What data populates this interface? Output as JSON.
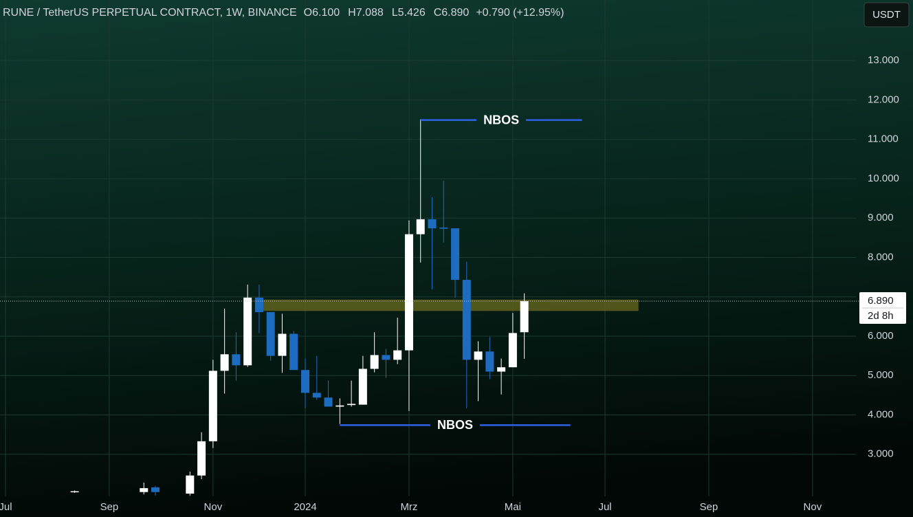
{
  "chart_data": {
    "type": "candlestick",
    "header": {
      "symbol": "RUNE / TetherUS PERPETUAL CONTRACT, 1W, BINANCE",
      "fields": [
        {
          "key": "O",
          "value": "6.100"
        },
        {
          "key": "H",
          "value": "7.088"
        },
        {
          "key": "L",
          "value": "5.426"
        },
        {
          "key": "C",
          "value": "6.890"
        }
      ],
      "change": "+0.790 (+12.95%)"
    },
    "currency_button": "USDT",
    "categories": [
      "Jul",
      null,
      null,
      null,
      null,
      null,
      null,
      null,
      null,
      "Sep",
      null,
      null,
      null,
      null,
      null,
      null,
      null,
      null,
      "Nov",
      null,
      null,
      null,
      null,
      null,
      null,
      null,
      "2024",
      null,
      null,
      null,
      null,
      null,
      null,
      null,
      null,
      "Mrz",
      null,
      null,
      null,
      null,
      null,
      null,
      null,
      null,
      "Mai",
      null,
      null,
      null,
      null,
      null,
      null,
      null,
      "Jul",
      null,
      null,
      null,
      null,
      null,
      null,
      null,
      null,
      "Sep",
      null,
      null,
      null,
      null,
      null,
      null,
      null,
      null,
      "Nov"
    ],
    "open": [
      null,
      null,
      null,
      null,
      null,
      null,
      2.05,
      null,
      null,
      null,
      null,
      null,
      2.04,
      2.16,
      null,
      null,
      2.0,
      2.46,
      3.33,
      5.12,
      5.54,
      5.26,
      6.98,
      6.61,
      5.5,
      6.06,
      5.14,
      4.56,
      4.44,
      4.21,
      4.25,
      4.26,
      5.17,
      5.52,
      5.4,
      5.64,
      8.59,
      8.97,
      8.76,
      8.74,
      7.43,
      5.4,
      5.61,
      5.1,
      5.21,
      6.1,
      null,
      null,
      null,
      null,
      null,
      null,
      null,
      null,
      null,
      null,
      null,
      null,
      null,
      null,
      null,
      null,
      null,
      null,
      null,
      null,
      null,
      null,
      null,
      null,
      null
    ],
    "high": [
      null,
      null,
      null,
      null,
      null,
      null,
      2.08,
      null,
      null,
      null,
      null,
      null,
      2.28,
      2.2,
      null,
      null,
      2.56,
      3.56,
      5.4,
      6.7,
      6.1,
      7.31,
      7.31,
      6.61,
      6.57,
      6.13,
      5.43,
      5.5,
      4.87,
      4.42,
      4.87,
      5.5,
      6.1,
      5.68,
      6.47,
      8.94,
      11.51,
      9.53,
      9.95,
      8.74,
      7.89,
      5.87,
      5.98,
      5.43,
      6.59,
      7.088,
      null,
      null,
      null,
      null,
      null,
      null,
      null,
      null,
      null,
      null,
      null,
      null,
      null,
      null,
      null,
      null,
      null,
      null,
      null,
      null,
      null,
      null,
      null,
      null,
      null
    ],
    "low": [
      null,
      null,
      null,
      null,
      null,
      null,
      2.02,
      null,
      null,
      null,
      null,
      null,
      1.98,
      1.95,
      null,
      null,
      1.95,
      2.37,
      3.16,
      4.54,
      4.87,
      5.22,
      6.08,
      5.38,
      5.07,
      5.14,
      4.17,
      4.38,
      4.21,
      3.77,
      4.21,
      4.26,
      5.08,
      4.94,
      5.29,
      4.1,
      7.87,
      7.19,
      8.38,
      6.98,
      4.17,
      4.35,
      4.91,
      4.52,
      5.21,
      5.426,
      null,
      null,
      null,
      null,
      null,
      null,
      null,
      null,
      null,
      null,
      null,
      null,
      null,
      null,
      null,
      null,
      null,
      null,
      null,
      null,
      null,
      null,
      null,
      null,
      null
    ],
    "close": [
      null,
      null,
      null,
      null,
      null,
      null,
      2.06,
      null,
      null,
      null,
      null,
      null,
      2.14,
      2.04,
      null,
      null,
      2.46,
      3.33,
      5.12,
      5.54,
      5.26,
      6.98,
      6.61,
      5.5,
      6.06,
      5.14,
      4.56,
      4.44,
      4.21,
      4.24,
      4.28,
      5.17,
      5.52,
      5.4,
      5.64,
      8.59,
      8.97,
      8.74,
      8.73,
      7.43,
      5.4,
      5.61,
      5.1,
      5.21,
      6.08,
      6.89,
      null,
      null,
      null,
      null,
      null,
      null,
      null,
      null,
      null,
      null,
      null,
      null,
      null,
      null,
      null,
      null,
      null,
      null,
      null,
      null,
      null,
      null,
      null,
      null,
      null
    ],
    "up_color": "#ffffff",
    "down_color": "#1e6cc0",
    "ylim": [
      1.93,
      14.54
    ],
    "yticks": [
      {
        "value": 3,
        "label": "3.000"
      },
      {
        "value": 4,
        "label": "4.000"
      },
      {
        "value": 5,
        "label": "5.000"
      },
      {
        "value": 6,
        "label": "6.000"
      },
      {
        "value": 7,
        "label": "7.000"
      },
      {
        "value": 8,
        "label": "8.000"
      },
      {
        "value": 9,
        "label": "9.000"
      },
      {
        "value": 10,
        "label": "10.000"
      },
      {
        "value": 11,
        "label": "11.000"
      },
      {
        "value": 12,
        "label": "12.000"
      },
      {
        "value": 13,
        "label": "13.000"
      }
    ],
    "grid": true,
    "last_price": {
      "value": 6.89,
      "label": "6.890",
      "countdown": "2d 8h"
    },
    "zone": {
      "low": 6.64,
      "high": 6.93,
      "start": 22.2,
      "end": 54.9,
      "color": "#6b6a1e"
    },
    "annotations": [
      {
        "text": "NBOS",
        "value": 11.49,
        "start": 36,
        "end": 50,
        "color": "#2f62e6"
      },
      {
        "text": "NBOS",
        "value": 3.74,
        "start": 29,
        "end": 49,
        "color": "#2f62e6"
      }
    ]
  }
}
